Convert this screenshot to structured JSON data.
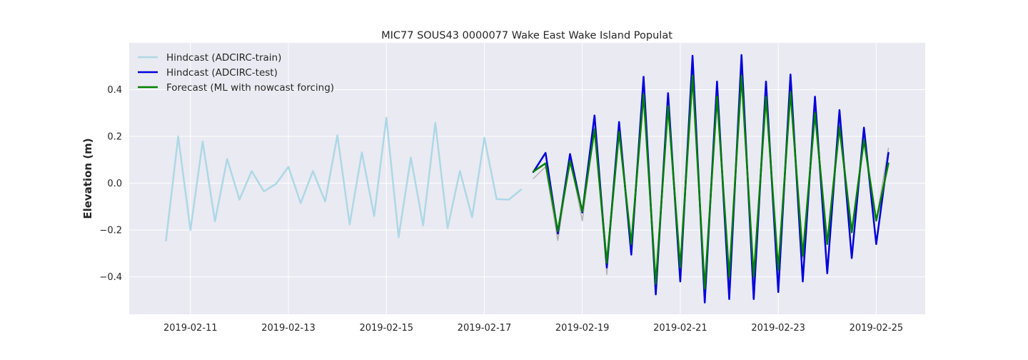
{
  "chart_data": {
    "type": "line",
    "title": "MIC77 SOUS43 0000077 Wake East Wake Island Populat",
    "xlabel": "",
    "ylabel": "Elevation (m)",
    "x_type": "date",
    "xlim": [
      "2019-02-09 18:00",
      "2019-02-26 00:00"
    ],
    "ylim": [
      -0.56,
      0.6
    ],
    "x_tick_labels": [
      "2019-02-11",
      "2019-02-13",
      "2019-02-15",
      "2019-02-17",
      "2019-02-19",
      "2019-02-21",
      "2019-02-23",
      "2019-02-25"
    ],
    "y_ticks": [
      -0.4,
      -0.2,
      0.0,
      0.2,
      0.4
    ],
    "y_tick_labels": [
      "−0.4",
      "−0.2",
      "0.0",
      "0.2",
      "0.4"
    ],
    "grid": true,
    "legend_position": "upper-left",
    "background_color": "#eaeaf2",
    "series": [
      {
        "name": "Hindcast (ADCIRC-train)",
        "color": "#add8e6",
        "x": [
          "2019-02-10 12:00",
          "2019-02-10 18:00",
          "2019-02-11 00:00",
          "2019-02-11 06:00",
          "2019-02-11 12:00",
          "2019-02-11 18:00",
          "2019-02-12 00:00",
          "2019-02-12 06:00",
          "2019-02-12 12:00",
          "2019-02-12 18:00",
          "2019-02-13 00:00",
          "2019-02-13 06:00",
          "2019-02-13 12:00",
          "2019-02-13 18:00",
          "2019-02-14 00:00",
          "2019-02-14 06:00",
          "2019-02-14 12:00",
          "2019-02-14 18:00",
          "2019-02-15 00:00",
          "2019-02-15 06:00",
          "2019-02-15 12:00",
          "2019-02-15 18:00",
          "2019-02-16 00:00",
          "2019-02-16 06:00",
          "2019-02-16 12:00",
          "2019-02-16 18:00",
          "2019-02-17 00:00",
          "2019-02-17 06:00",
          "2019-02-17 12:00",
          "2019-02-17 18:00"
        ],
        "y": [
          -0.245,
          0.2,
          -0.2,
          0.178,
          -0.163,
          0.104,
          -0.07,
          0.052,
          -0.035,
          -0.002,
          0.07,
          -0.085,
          0.052,
          -0.078,
          0.205,
          -0.176,
          0.132,
          -0.14,
          0.28,
          -0.23,
          0.11,
          -0.18,
          0.258,
          -0.192,
          0.052,
          -0.145,
          0.195,
          -0.068,
          -0.07,
          -0.027
        ]
      },
      {
        "name": "",
        "color": "#b0b0b0",
        "x": [
          "2019-02-18 00:00",
          "2019-02-18 06:00",
          "2019-02-18 12:00",
          "2019-02-18 18:00",
          "2019-02-19 00:00",
          "2019-02-19 06:00",
          "2019-02-19 12:00",
          "2019-02-19 18:00",
          "2019-02-20 00:00",
          "2019-02-20 06:00",
          "2019-02-20 12:00",
          "2019-02-20 18:00",
          "2019-02-21 00:00",
          "2019-02-21 06:00",
          "2019-02-21 12:00",
          "2019-02-21 18:00",
          "2019-02-22 00:00",
          "2019-02-22 06:00",
          "2019-02-22 12:00",
          "2019-02-22 18:00",
          "2019-02-23 00:00",
          "2019-02-23 06:00",
          "2019-02-23 12:00",
          "2019-02-23 18:00",
          "2019-02-24 00:00",
          "2019-02-24 06:00",
          "2019-02-24 12:00",
          "2019-02-24 18:00",
          "2019-02-25 00:00",
          "2019-02-25 06:00"
        ],
        "y": [
          0.02,
          0.07,
          -0.245,
          0.105,
          -0.16,
          0.24,
          -0.39,
          0.245,
          -0.27,
          0.42,
          -0.44,
          0.36,
          -0.38,
          0.5,
          -0.47,
          0.4,
          -0.44,
          0.5,
          -0.44,
          0.4,
          -0.4,
          0.42,
          -0.32,
          0.32,
          -0.24,
          0.27,
          -0.2,
          0.2,
          -0.16,
          0.15
        ]
      },
      {
        "name": "Hindcast (ADCIRC-test)",
        "color": "#0000dd",
        "x": [
          "2019-02-18 00:00",
          "2019-02-18 06:00",
          "2019-02-18 12:00",
          "2019-02-18 18:00",
          "2019-02-19 00:00",
          "2019-02-19 06:00",
          "2019-02-19 12:00",
          "2019-02-19 18:00",
          "2019-02-20 00:00",
          "2019-02-20 06:00",
          "2019-02-20 12:00",
          "2019-02-20 18:00",
          "2019-02-21 00:00",
          "2019-02-21 06:00",
          "2019-02-21 12:00",
          "2019-02-21 18:00",
          "2019-02-22 00:00",
          "2019-02-22 06:00",
          "2019-02-22 12:00",
          "2019-02-22 18:00",
          "2019-02-23 00:00",
          "2019-02-23 06:00",
          "2019-02-23 12:00",
          "2019-02-23 18:00",
          "2019-02-24 00:00",
          "2019-02-24 06:00",
          "2019-02-24 12:00",
          "2019-02-24 18:00",
          "2019-02-25 00:00",
          "2019-02-25 06:00"
        ],
        "y": [
          0.048,
          0.13,
          -0.215,
          0.125,
          -0.125,
          0.29,
          -0.36,
          0.262,
          -0.305,
          0.455,
          -0.475,
          0.385,
          -0.42,
          0.545,
          -0.51,
          0.435,
          -0.495,
          0.548,
          -0.495,
          0.435,
          -0.465,
          0.465,
          -0.42,
          0.37,
          -0.385,
          0.313,
          -0.32,
          0.238,
          -0.26,
          0.13
        ]
      },
      {
        "name": "Forecast (ML with nowcast forcing)",
        "color": "#008000",
        "x": [
          "2019-02-18 00:00",
          "2019-02-18 06:00",
          "2019-02-18 12:00",
          "2019-02-18 18:00",
          "2019-02-19 00:00",
          "2019-02-19 06:00",
          "2019-02-19 12:00",
          "2019-02-19 18:00",
          "2019-02-20 00:00",
          "2019-02-20 06:00",
          "2019-02-20 12:00",
          "2019-02-20 18:00",
          "2019-02-21 00:00",
          "2019-02-21 06:00",
          "2019-02-21 12:00",
          "2019-02-21 18:00",
          "2019-02-22 00:00",
          "2019-02-22 06:00",
          "2019-02-22 12:00",
          "2019-02-22 18:00",
          "2019-02-23 00:00",
          "2019-02-23 06:00",
          "2019-02-23 12:00",
          "2019-02-23 18:00",
          "2019-02-24 00:00",
          "2019-02-24 06:00",
          "2019-02-24 12:00",
          "2019-02-24 18:00",
          "2019-02-25 00:00",
          "2019-02-25 06:00"
        ],
        "y": [
          0.05,
          0.085,
          -0.205,
          0.095,
          -0.12,
          0.23,
          -0.34,
          0.22,
          -0.26,
          0.38,
          -0.43,
          0.33,
          -0.36,
          0.46,
          -0.45,
          0.37,
          -0.4,
          0.46,
          -0.4,
          0.37,
          -0.37,
          0.39,
          -0.31,
          0.3,
          -0.26,
          0.24,
          -0.21,
          0.185,
          -0.16,
          0.085
        ]
      }
    ]
  }
}
